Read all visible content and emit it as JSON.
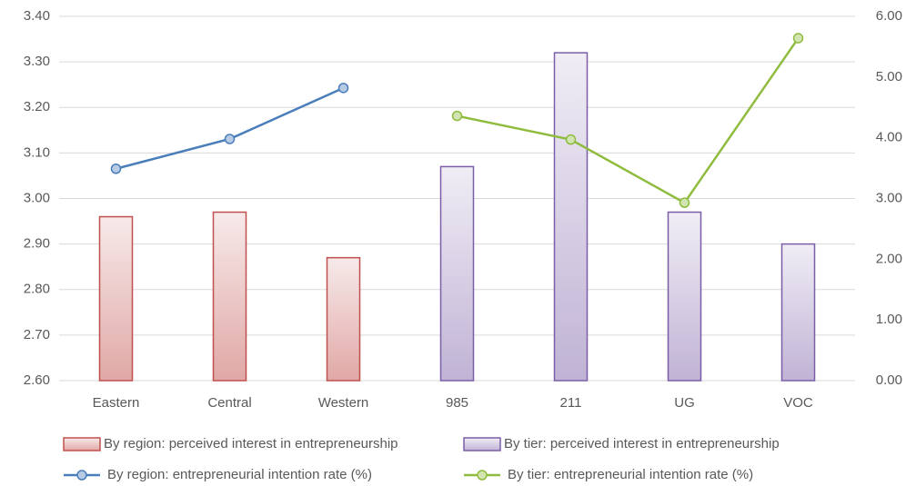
{
  "chart_data": {
    "type": "bar",
    "categories": [
      "Eastern",
      "Central",
      "Western",
      "985",
      "211",
      "UG",
      "VOC"
    ],
    "series": [
      {
        "name": "By region: perceived interest in entrepreneurship",
        "type": "bar",
        "color": "#c0504d",
        "values": [
          2.96,
          2.97,
          2.87,
          null,
          null,
          null,
          null
        ]
      },
      {
        "name": "By tier: perceived interest in entrepreneurship",
        "type": "bar",
        "color": "#7b5ea7",
        "values": [
          null,
          null,
          null,
          3.07,
          3.32,
          2.97,
          2.9
        ]
      },
      {
        "name": "By region: entrepreneurial intention rate (%)",
        "type": "line",
        "axis": "y2",
        "color": "#4a7ebb",
        "values": [
          3.49,
          3.98,
          4.82,
          null,
          null,
          null,
          null
        ]
      },
      {
        "name": "By tier: entrepreneurial intention rate (%)",
        "type": "line",
        "axis": "y2",
        "color": "#8fbc3f",
        "values": [
          null,
          null,
          null,
          4.36,
          3.97,
          2.93,
          5.64
        ]
      }
    ],
    "ylim": [
      2.6,
      3.4
    ],
    "yticks": [
      {
        "value": 2.6,
        "label": "2.60"
      },
      {
        "value": 2.7,
        "label": "2.70"
      },
      {
        "value": 2.8,
        "label": "2.80"
      },
      {
        "value": 2.9,
        "label": "2.90"
      },
      {
        "value": 3.0,
        "label": "3.00"
      },
      {
        "value": 3.1,
        "label": "3.10"
      },
      {
        "value": 3.2,
        "label": "3.20"
      },
      {
        "value": 3.3,
        "label": "3.30"
      },
      {
        "value": 3.4,
        "label": "3.40"
      }
    ],
    "y2lim": [
      0,
      6
    ],
    "y2ticks": [
      {
        "value": 0,
        "label": "0.00"
      },
      {
        "value": 1,
        "label": "1.00"
      },
      {
        "value": 2,
        "label": "2.00"
      },
      {
        "value": 3,
        "label": "3.00"
      },
      {
        "value": 4,
        "label": "4.00"
      },
      {
        "value": 5,
        "label": "5.00"
      },
      {
        "value": 6,
        "label": "6.00"
      }
    ],
    "grid": true,
    "legend": "bottom"
  }
}
